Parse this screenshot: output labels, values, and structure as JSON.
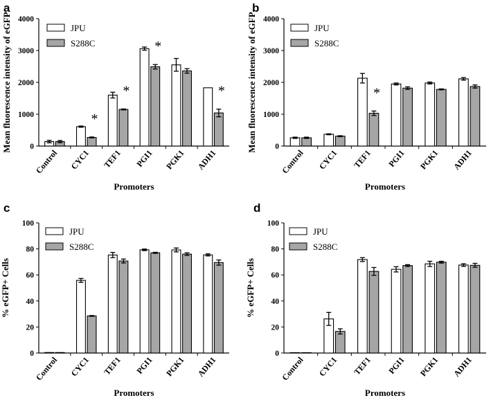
{
  "chart_data": [
    {
      "panel": "a",
      "type": "bar",
      "xlabel": "Promoters",
      "ylabel": "Mean fluorescence intensity of eGFP",
      "ylim": [
        0,
        4000
      ],
      "yticks": [
        0,
        1000,
        2000,
        3000,
        4000
      ],
      "categories": [
        "Control",
        "CYC1",
        "TEF1",
        "PGI1",
        "PGK1",
        "ADH1"
      ],
      "series": [
        {
          "name": "JPU",
          "color": "#ffffff",
          "values": [
            140,
            610,
            1600,
            3060,
            2550,
            1830
          ],
          "errors": [
            40,
            20,
            90,
            50,
            200,
            0
          ]
        },
        {
          "name": "S288C",
          "color": "#a6a6a6",
          "values": [
            140,
            270,
            1150,
            2490,
            2360,
            1040
          ],
          "errors": [
            35,
            15,
            15,
            70,
            70,
            120
          ]
        }
      ],
      "annotations": [
        {
          "category": "CYC1",
          "text": "*"
        },
        {
          "category": "TEF1",
          "text": "*"
        },
        {
          "category": "PGI1",
          "text": "*"
        },
        {
          "category": "ADH1",
          "text": "*"
        }
      ],
      "legend": "top-left"
    },
    {
      "panel": "b",
      "type": "bar",
      "xlabel": "Promoters",
      "ylabel": "Mean fluorescence intensity of eGFP",
      "ylim": [
        0,
        4000
      ],
      "yticks": [
        0,
        1000,
        2000,
        3000,
        4000
      ],
      "categories": [
        "Control",
        "CYC1",
        "TEF1",
        "PGI1",
        "PGK1",
        "ADH1"
      ],
      "series": [
        {
          "name": "JPU",
          "color": "#ffffff",
          "values": [
            260,
            370,
            2130,
            1950,
            1980,
            2110
          ],
          "errors": [
            20,
            15,
            150,
            30,
            30,
            40
          ]
        },
        {
          "name": "S288C",
          "color": "#a6a6a6",
          "values": [
            260,
            310,
            1030,
            1820,
            1780,
            1870
          ],
          "errors": [
            20,
            15,
            70,
            40,
            15,
            50
          ]
        }
      ],
      "annotations": [
        {
          "category": "TEF1",
          "text": "*"
        }
      ],
      "legend": "top-left"
    },
    {
      "panel": "c",
      "type": "bar",
      "xlabel": "Promoters",
      "ylabel": "% eGFP+ Cells",
      "ylim": [
        0,
        100
      ],
      "yticks": [
        0,
        20,
        40,
        60,
        80,
        100
      ],
      "categories": [
        "Control",
        "CYC1",
        "TEF1",
        "PGI1",
        "PGK1",
        "ADH1"
      ],
      "series": [
        {
          "name": "JPU",
          "color": "#ffffff",
          "values": [
            0.4,
            55.8,
            75.3,
            79.3,
            79.2,
            75.4
          ],
          "errors": [
            0,
            1.5,
            2.0,
            0.6,
            1.5,
            0.8
          ]
        },
        {
          "name": "S288C",
          "color": "#a6a6a6",
          "values": [
            0.4,
            28.5,
            70.7,
            77.0,
            76.0,
            69.5
          ],
          "errors": [
            0,
            0.3,
            1.5,
            0.4,
            1.0,
            2.0
          ]
        }
      ],
      "annotations": [],
      "legend": "top-left"
    },
    {
      "panel": "d",
      "type": "bar",
      "xlabel": "Promoters",
      "ylabel": "% eGFP+ Cells",
      "ylim": [
        0,
        100
      ],
      "yticks": [
        0,
        20,
        40,
        60,
        80,
        100
      ],
      "categories": [
        "Control",
        "CYC1",
        "TEF1",
        "PGI1",
        "PGK1",
        "ADH1"
      ],
      "series": [
        {
          "name": "JPU",
          "color": "#ffffff",
          "values": [
            0.3,
            26.2,
            71.8,
            64.3,
            68.5,
            67.6
          ],
          "errors": [
            0,
            5.0,
            1.5,
            2.0,
            2.0,
            1.0
          ]
        },
        {
          "name": "S288C",
          "color": "#a6a6a6",
          "values": [
            0.3,
            16.6,
            62.7,
            67.2,
            69.8,
            67.4
          ],
          "errors": [
            0,
            2.0,
            3.0,
            0.7,
            0.7,
            1.5
          ]
        }
      ],
      "annotations": [],
      "legend": "top-left"
    }
  ]
}
